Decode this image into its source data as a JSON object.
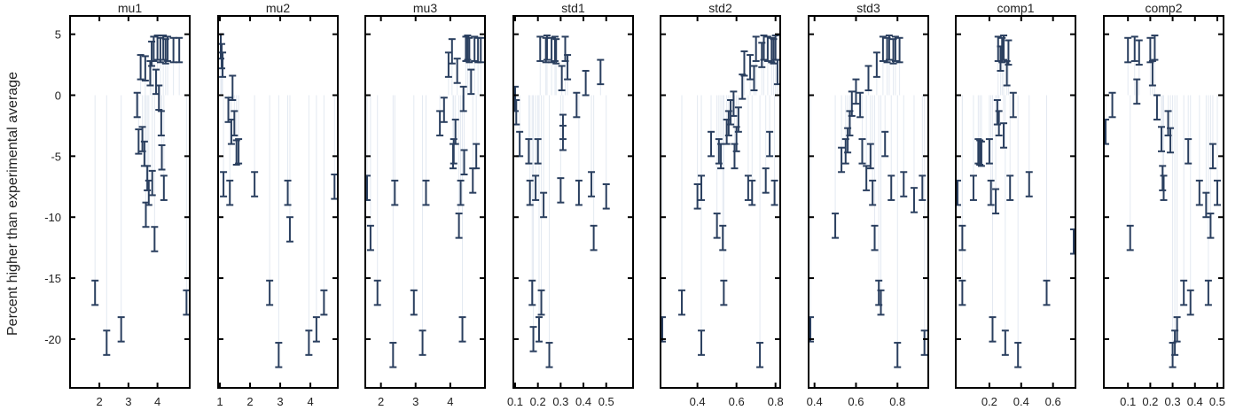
{
  "chart_data": {
    "type": "scatter",
    "ylabel": "Percent higher than experimental average",
    "ylim": [
      -24,
      6.5
    ],
    "yticks": [
      5,
      0,
      -5,
      -10,
      -15,
      -20
    ],
    "error_half_width": 1.0,
    "colors": {
      "marker": "#2a3f5f",
      "stem": "#e3e9f1",
      "frame": "#000000"
    },
    "panels": [
      {
        "title": "mu1",
        "xlim": [
          1.05,
          5.05
        ],
        "xticks": [
          2,
          3,
          4
        ],
        "points": [
          [
            1.85,
            -16.2
          ],
          [
            2.25,
            -20.3
          ],
          [
            2.75,
            -19.2
          ],
          [
            3.3,
            -0.8
          ],
          [
            3.35,
            -3.8
          ],
          [
            3.42,
            2.3
          ],
          [
            3.48,
            -3.6
          ],
          [
            3.55,
            -4.8
          ],
          [
            3.58,
            2.2
          ],
          [
            3.6,
            -9.8
          ],
          [
            3.65,
            -6.8
          ],
          [
            3.7,
            -8.0
          ],
          [
            3.75,
            1.8
          ],
          [
            3.8,
            3.4
          ],
          [
            3.82,
            -7.2
          ],
          [
            3.87,
            3.8
          ],
          [
            3.9,
            -11.8
          ],
          [
            3.95,
            1.1
          ],
          [
            4.0,
            3.9
          ],
          [
            4.05,
            -0.2
          ],
          [
            4.1,
            3.7
          ],
          [
            4.13,
            -2.3
          ],
          [
            4.15,
            -5.1
          ],
          [
            4.2,
            3.9
          ],
          [
            4.22,
            -7.6
          ],
          [
            4.28,
            3.6
          ],
          [
            4.35,
            3.8
          ],
          [
            4.55,
            3.7
          ],
          [
            4.75,
            3.7
          ],
          [
            5.0,
            -17.0
          ]
        ]
      },
      {
        "title": "mu2",
        "xlim": [
          1.0,
          4.85
        ],
        "xticks": [
          1,
          2,
          3,
          4
        ],
        "points": [
          [
            1.03,
            4.0
          ],
          [
            1.06,
            3.2
          ],
          [
            1.09,
            2.5
          ],
          [
            1.12,
            -7.3
          ],
          [
            1.28,
            -1.2
          ],
          [
            1.33,
            -8.0
          ],
          [
            1.38,
            -3.0
          ],
          [
            1.42,
            0.6
          ],
          [
            1.48,
            -2.3
          ],
          [
            1.55,
            -4.7
          ],
          [
            1.62,
            -4.6
          ],
          [
            2.15,
            -7.3
          ],
          [
            2.65,
            -16.2
          ],
          [
            2.95,
            -21.3
          ],
          [
            3.25,
            -8.0
          ],
          [
            3.32,
            -11.0
          ],
          [
            3.95,
            -20.3
          ],
          [
            4.2,
            -19.2
          ],
          [
            4.45,
            -17.0
          ],
          [
            4.8,
            -7.5
          ]
        ]
      },
      {
        "title": "mu3",
        "xlim": [
          1.6,
          4.95
        ],
        "xticks": [
          2,
          3,
          4
        ],
        "points": [
          [
            1.6,
            -7.6
          ],
          [
            1.7,
            -11.7
          ],
          [
            1.9,
            -16.2
          ],
          [
            2.35,
            -21.3
          ],
          [
            2.4,
            -8.0
          ],
          [
            2.95,
            -17.0
          ],
          [
            3.2,
            -20.3
          ],
          [
            3.3,
            -8.0
          ],
          [
            3.7,
            -2.3
          ],
          [
            3.82,
            -1.2
          ],
          [
            3.95,
            2.5
          ],
          [
            4.05,
            3.6
          ],
          [
            4.08,
            -5.0
          ],
          [
            4.1,
            -4.6
          ],
          [
            4.15,
            -3.0
          ],
          [
            4.2,
            2.0
          ],
          [
            4.25,
            -10.7
          ],
          [
            4.3,
            -8.0
          ],
          [
            4.35,
            -19.2
          ],
          [
            4.38,
            -0.3
          ],
          [
            4.4,
            -5.5
          ],
          [
            4.45,
            3.8
          ],
          [
            4.5,
            3.9
          ],
          [
            4.55,
            3.7
          ],
          [
            4.6,
            1.1
          ],
          [
            4.65,
            -7.0
          ],
          [
            4.7,
            3.8
          ],
          [
            4.75,
            -5.0
          ],
          [
            4.8,
            3.7
          ],
          [
            4.88,
            3.7
          ]
        ]
      },
      {
        "title": "std1",
        "xlim": [
          0.1,
          0.61
        ],
        "xticks": [
          0.1,
          0.2,
          0.3,
          0.4,
          0.5
        ],
        "points": [
          [
            0.1,
            -0.3
          ],
          [
            0.105,
            -1.4
          ],
          [
            0.12,
            -4.0
          ],
          [
            0.16,
            -4.6
          ],
          [
            0.165,
            -8.0
          ],
          [
            0.175,
            -16.2
          ],
          [
            0.18,
            -20.0
          ],
          [
            0.19,
            -7.6
          ],
          [
            0.2,
            -4.6
          ],
          [
            0.205,
            -19.2
          ],
          [
            0.21,
            3.8
          ],
          [
            0.215,
            -17.0
          ],
          [
            0.225,
            -9.0
          ],
          [
            0.235,
            3.7
          ],
          [
            0.24,
            3.9
          ],
          [
            0.25,
            -21.3
          ],
          [
            0.26,
            3.7
          ],
          [
            0.275,
            3.8
          ],
          [
            0.28,
            3.6
          ],
          [
            0.3,
            -7.8
          ],
          [
            0.305,
            1.4
          ],
          [
            0.31,
            -2.6
          ],
          [
            0.31,
            -3.5
          ],
          [
            0.32,
            3.8
          ],
          [
            0.33,
            2.3
          ],
          [
            0.37,
            -0.8
          ],
          [
            0.38,
            -8.0
          ],
          [
            0.41,
            1.0
          ],
          [
            0.435,
            -7.3
          ],
          [
            0.445,
            -11.7
          ],
          [
            0.475,
            1.9
          ],
          [
            0.5,
            -8.3
          ]
        ]
      },
      {
        "title": "std2",
        "xlim": [
          0.22,
          0.815
        ],
        "xticks": [
          0.4,
          0.6,
          0.8
        ],
        "points": [
          [
            0.22,
            -19.2
          ],
          [
            0.32,
            -17.0
          ],
          [
            0.4,
            -8.3
          ],
          [
            0.42,
            -20.3
          ],
          [
            0.42,
            -7.6
          ],
          [
            0.47,
            -4.0
          ],
          [
            0.5,
            -10.7
          ],
          [
            0.51,
            -4.6
          ],
          [
            0.52,
            -5.0
          ],
          [
            0.53,
            -11.7
          ],
          [
            0.535,
            -16.2
          ],
          [
            0.55,
            -3.0
          ],
          [
            0.56,
            -2.3
          ],
          [
            0.57,
            -1.4
          ],
          [
            0.585,
            -0.7
          ],
          [
            0.59,
            -5.0
          ],
          [
            0.6,
            -3.6
          ],
          [
            0.61,
            -2.0
          ],
          [
            0.63,
            0.7
          ],
          [
            0.64,
            2.6
          ],
          [
            0.66,
            -7.6
          ],
          [
            0.67,
            2.3
          ],
          [
            0.68,
            -8.0
          ],
          [
            0.69,
            1.4
          ],
          [
            0.7,
            3.8
          ],
          [
            0.72,
            -21.3
          ],
          [
            0.73,
            3.3
          ],
          [
            0.74,
            3.9
          ],
          [
            0.75,
            -7.0
          ],
          [
            0.76,
            3.8
          ],
          [
            0.77,
            -4.0
          ],
          [
            0.78,
            3.7
          ],
          [
            0.79,
            3.6
          ],
          [
            0.795,
            -8.0
          ],
          [
            0.8,
            3.9
          ],
          [
            0.81,
            1.9
          ]
        ]
      },
      {
        "title": "std3",
        "xlim": [
          0.38,
          0.94
        ],
        "xticks": [
          0.4,
          0.6,
          0.8
        ],
        "points": [
          [
            0.38,
            -19.2
          ],
          [
            0.5,
            -10.7
          ],
          [
            0.53,
            -5.3
          ],
          [
            0.55,
            -4.6
          ],
          [
            0.56,
            -3.7
          ],
          [
            0.57,
            -2.3
          ],
          [
            0.58,
            -0.7
          ],
          [
            0.6,
            0.3
          ],
          [
            0.62,
            -0.8
          ],
          [
            0.63,
            -4.6
          ],
          [
            0.65,
            -6.8
          ],
          [
            0.66,
            1.4
          ],
          [
            0.67,
            -5.0
          ],
          [
            0.68,
            -8.0
          ],
          [
            0.69,
            -11.7
          ],
          [
            0.7,
            2.5
          ],
          [
            0.71,
            -16.2
          ],
          [
            0.72,
            -17.0
          ],
          [
            0.73,
            3.8
          ],
          [
            0.74,
            -4.0
          ],
          [
            0.75,
            3.7
          ],
          [
            0.76,
            3.9
          ],
          [
            0.77,
            -7.6
          ],
          [
            0.78,
            3.6
          ],
          [
            0.79,
            3.8
          ],
          [
            0.8,
            -21.3
          ],
          [
            0.81,
            3.7
          ],
          [
            0.83,
            -7.3
          ],
          [
            0.88,
            -8.6
          ],
          [
            0.92,
            -7.6
          ],
          [
            0.93,
            -20.3
          ]
        ]
      },
      {
        "title": "comp1",
        "xlim": [
          0.0,
          0.73
        ],
        "xticks": [
          0.2,
          0.4,
          0.6
        ],
        "points": [
          [
            0.0,
            -8.0
          ],
          [
            0.03,
            -16.2
          ],
          [
            0.03,
            -11.7
          ],
          [
            0.1,
            -7.6
          ],
          [
            0.13,
            -4.6
          ],
          [
            0.14,
            -4.7
          ],
          [
            0.15,
            -4.8
          ],
          [
            0.2,
            -4.6
          ],
          [
            0.21,
            -8.0
          ],
          [
            0.22,
            -19.2
          ],
          [
            0.24,
            -8.7
          ],
          [
            0.25,
            -1.4
          ],
          [
            0.255,
            3.8
          ],
          [
            0.26,
            -2.3
          ],
          [
            0.27,
            3.0
          ],
          [
            0.28,
            3.7
          ],
          [
            0.29,
            3.9
          ],
          [
            0.29,
            -3.3
          ],
          [
            0.3,
            -20.3
          ],
          [
            0.31,
            1.8
          ],
          [
            0.32,
            3.5
          ],
          [
            0.33,
            -7.6
          ],
          [
            0.35,
            -0.8
          ],
          [
            0.38,
            -21.3
          ],
          [
            0.45,
            -7.3
          ],
          [
            0.56,
            -16.2
          ],
          [
            0.73,
            -12.0
          ]
        ]
      },
      {
        "title": "comp2",
        "xlim": [
          0.0,
          0.52
        ],
        "xticks": [
          0.1,
          0.2,
          0.3,
          0.4,
          0.5
        ],
        "points": [
          [
            0.0,
            -3.0
          ],
          [
            0.03,
            -0.8
          ],
          [
            0.1,
            3.7
          ],
          [
            0.11,
            -11.7
          ],
          [
            0.13,
            3.8
          ],
          [
            0.14,
            0.3
          ],
          [
            0.15,
            3.5
          ],
          [
            0.2,
            3.7
          ],
          [
            0.21,
            1.8
          ],
          [
            0.22,
            3.9
          ],
          [
            0.23,
            -1.0
          ],
          [
            0.25,
            -3.6
          ],
          [
            0.255,
            -6.8
          ],
          [
            0.26,
            -7.6
          ],
          [
            0.28,
            -2.3
          ],
          [
            0.29,
            -3.7
          ],
          [
            0.3,
            -21.3
          ],
          [
            0.31,
            -20.3
          ],
          [
            0.32,
            -19.2
          ],
          [
            0.35,
            -16.2
          ],
          [
            0.37,
            -4.6
          ],
          [
            0.38,
            -17.0
          ],
          [
            0.42,
            -8.0
          ],
          [
            0.45,
            -9.0
          ],
          [
            0.46,
            -16.2
          ],
          [
            0.47,
            -10.7
          ],
          [
            0.48,
            -5.0
          ],
          [
            0.5,
            -8.0
          ]
        ]
      }
    ]
  }
}
